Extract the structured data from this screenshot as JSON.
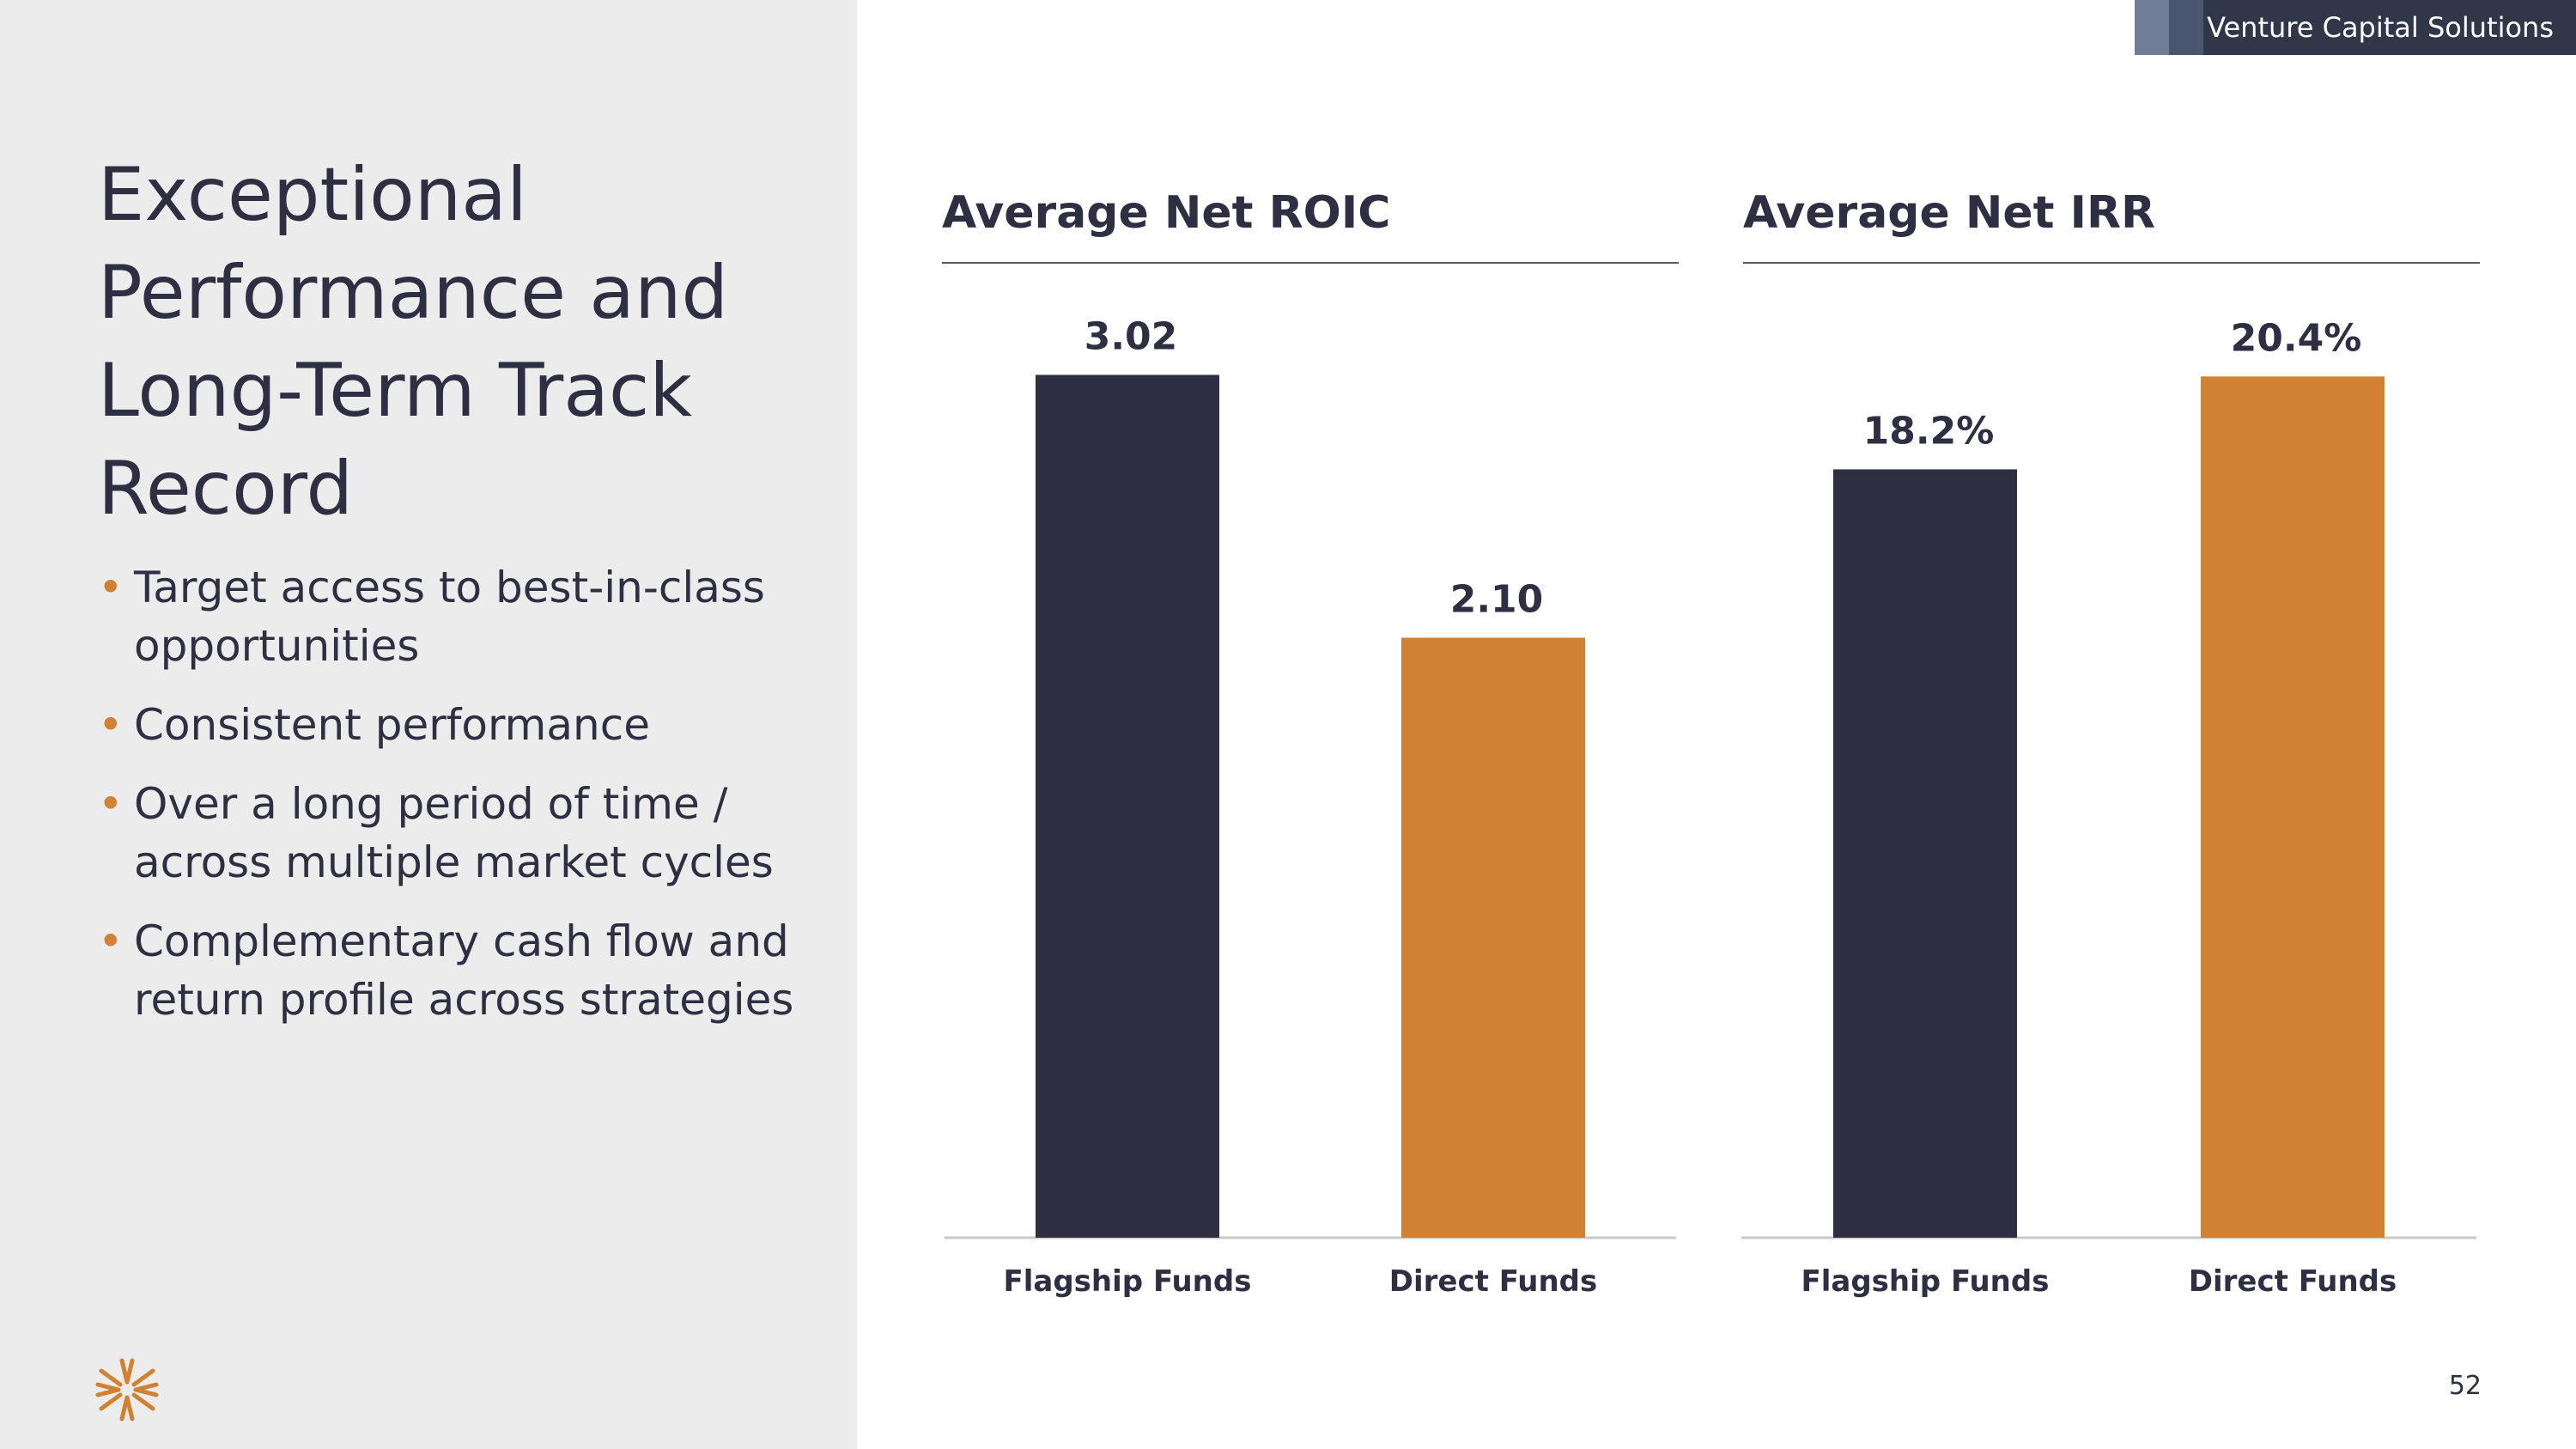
{
  "header": {
    "label": "Venture Capital Solutions"
  },
  "title": "Exceptional Performance and Long-Term Track Record",
  "bullets": [
    "Target access to best-in-class opportunities",
    "Consistent performance",
    "Over a long period of time / across multiple market cycles",
    "Complementary cash flow and return profile across strategies"
  ],
  "bullet_marker": "•",
  "page_number": "52",
  "colors": {
    "navy": "#2e2f42",
    "orange": "#d08132",
    "panel": "#ececec"
  },
  "chart_data": [
    {
      "type": "bar",
      "title": "Average Net ROIC",
      "categories": [
        "Flagship Funds",
        "Direct Funds"
      ],
      "values": [
        3.02,
        2.1
      ],
      "data_labels": [
        "3.02",
        "2.10"
      ],
      "ylim": [
        0,
        3.31
      ],
      "colors": [
        "#2e2f42",
        "#d08132"
      ],
      "grid": false,
      "legend": "none"
    },
    {
      "type": "bar",
      "title": "Average Net IRR",
      "categories": [
        "Flagship Funds",
        "Direct Funds"
      ],
      "values": [
        18.2,
        20.4
      ],
      "data_labels": [
        "18.2%",
        "20.4%"
      ],
      "ylim": [
        0,
        22.4
      ],
      "colors": [
        "#2e2f42",
        "#d08132"
      ],
      "grid": false,
      "legend": "none"
    }
  ]
}
